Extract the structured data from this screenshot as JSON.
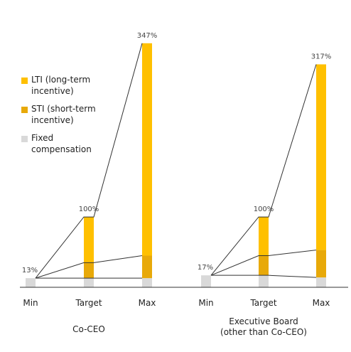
{
  "chart_data": {
    "type": "bar",
    "stacked": true,
    "groups": [
      {
        "label": "Co-CEO",
        "categories": [
          "Min",
          "Target",
          "Max"
        ],
        "total_labels": [
          "13%",
          "100%",
          "347%"
        ],
        "totals": [
          13,
          100,
          347
        ],
        "series_values": {
          "Fixed compensation": [
            13,
            13,
            13
          ],
          "STI (short-term incentive)": [
            0,
            22,
            32
          ],
          "LTI (long-term incentive)": [
            0,
            65,
            302
          ]
        }
      },
      {
        "label": "Executive Board\n(other than Co-CEO)",
        "categories": [
          "Min",
          "Target",
          "Max"
        ],
        "total_labels": [
          "17%",
          "100%",
          "317%"
        ],
        "totals": [
          17,
          100,
          317
        ],
        "series_values": {
          "Fixed compensation": [
            17,
            17,
            14
          ],
          "STI (short-term incentive)": [
            0,
            28,
            39
          ],
          "LTI (long-term incentive)": [
            0,
            55,
            264
          ]
        }
      }
    ],
    "series": [
      {
        "name": "Fixed compensation",
        "color": "#d9d9d9"
      },
      {
        "name": "STI (short-term incentive)",
        "color": "#e8a909"
      },
      {
        "name": "LTI (long-term incentive)",
        "color": "#ffc000"
      }
    ],
    "ylim": [
      0,
      360
    ],
    "grid": false,
    "legend_position": "left"
  },
  "legend": {
    "items": [
      {
        "label": "LTI (long-term\nincentive)",
        "color": "#ffc000"
      },
      {
        "label": "STI (short-term\nincentive)",
        "color": "#e8a909"
      },
      {
        "label": "Fixed\ncompensation",
        "color": "#d9d9d9"
      }
    ]
  }
}
